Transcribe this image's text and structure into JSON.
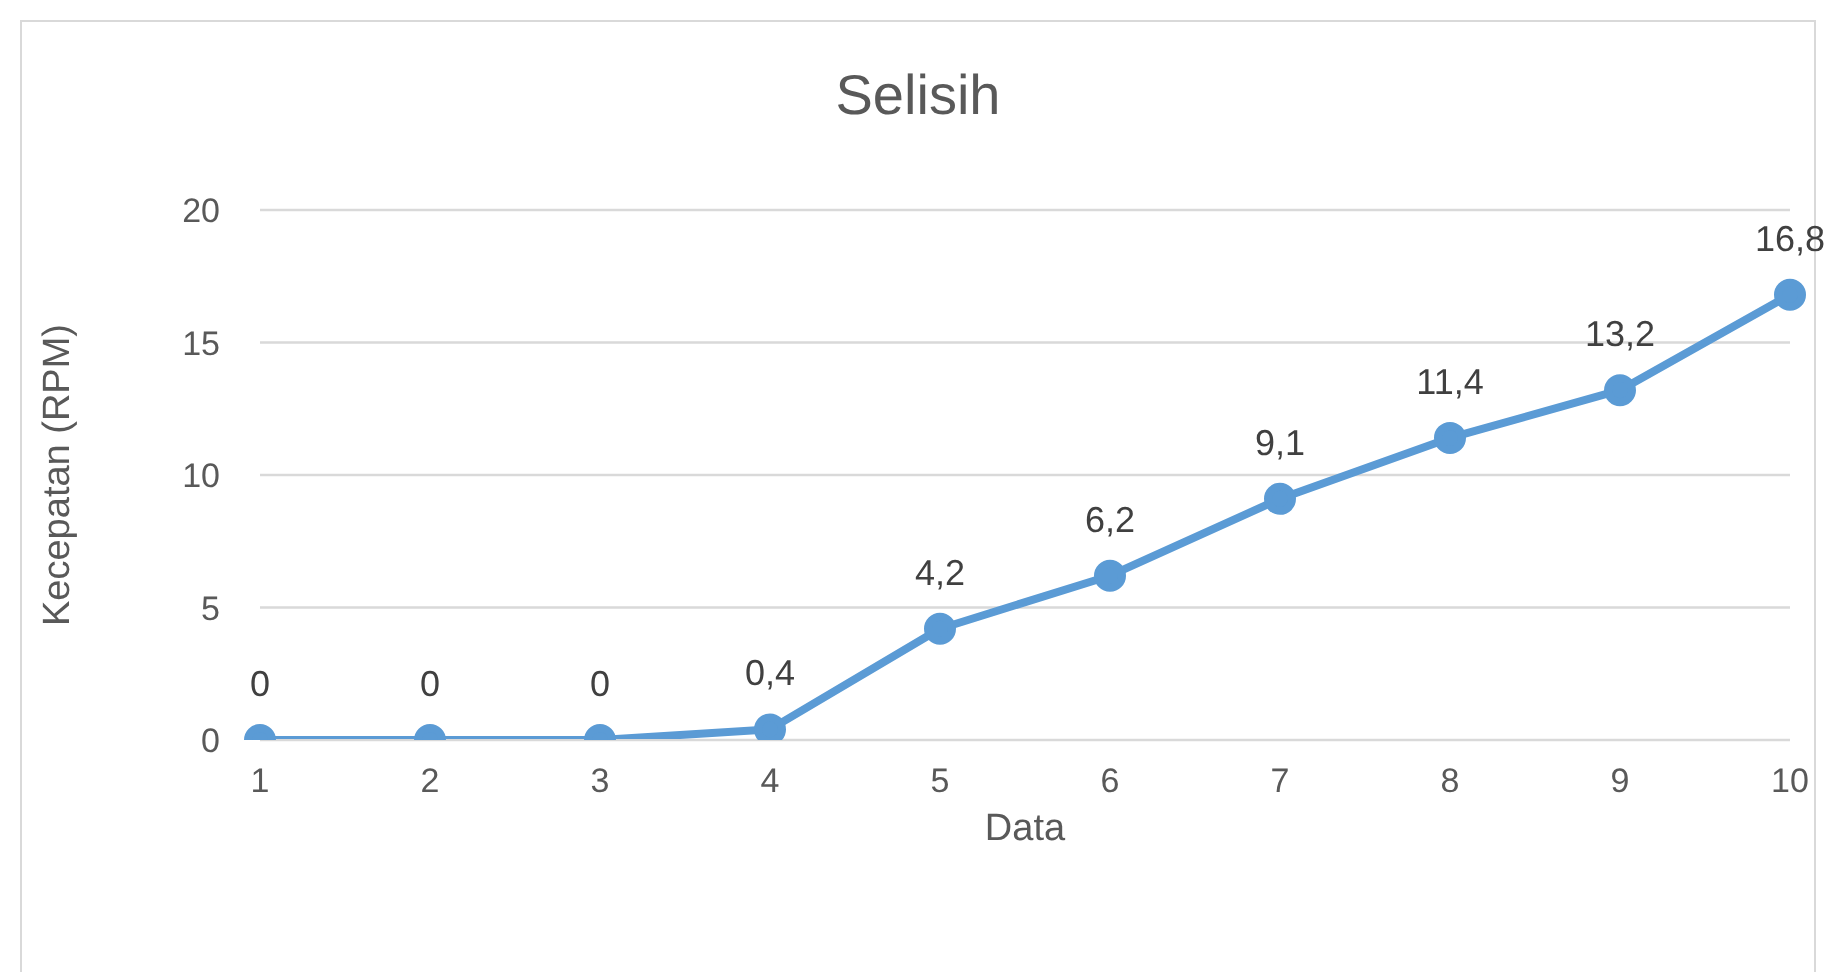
{
  "chart_data": {
    "type": "line",
    "title": "Selisih",
    "xlabel": "Data",
    "ylabel": "Kecepatan (RPM)",
    "categories": [
      "1",
      "2",
      "3",
      "4",
      "5",
      "6",
      "7",
      "8",
      "9",
      "10"
    ],
    "series": [
      {
        "color": "#5b9bd5",
        "values": [
          0,
          0,
          0,
          0.4,
          4.2,
          6.2,
          9.1,
          11.4,
          13.2,
          16.8
        ],
        "value_labels": [
          "0",
          "0",
          "0",
          "0,4",
          "4,2",
          "6,2",
          "9,1",
          "11,4",
          "13,2",
          "16,8"
        ]
      }
    ],
    "ylim": [
      0,
      20
    ],
    "yticks": [
      0,
      5,
      10,
      15,
      20
    ],
    "grid": "y",
    "marker": "circle",
    "line_style": "solid"
  }
}
